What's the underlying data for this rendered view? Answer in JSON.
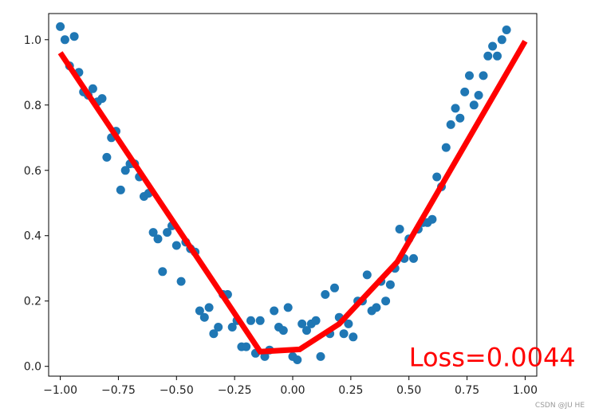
{
  "chart_data": {
    "type": "scatter",
    "xlim": [
      -1.05,
      1.05
    ],
    "ylim": [
      -0.03,
      1.08
    ],
    "grid": false,
    "x_ticks": [
      -1.0,
      -0.75,
      -0.5,
      -0.25,
      0.0,
      0.25,
      0.5,
      0.75,
      1.0
    ],
    "x_tick_labels": [
      "−1.00",
      "−0.75",
      "−0.50",
      "−0.25",
      "0.00",
      "0.25",
      "0.50",
      "0.75",
      "1.00"
    ],
    "y_ticks": [
      0.0,
      0.2,
      0.4,
      0.6,
      0.8,
      1.0
    ],
    "y_tick_labels": [
      "0.0",
      "0.2",
      "0.4",
      "0.6",
      "0.8",
      "1.0"
    ],
    "scatter_color": "#1f77b4",
    "line_color": "#ff0000",
    "annotation": {
      "text": "Loss=0.0044",
      "color": "#ff0000",
      "x": 0.5,
      "y": 0.0
    },
    "points": [
      [
        -1.0,
        1.04
      ],
      [
        -0.98,
        1.0
      ],
      [
        -0.96,
        0.92
      ],
      [
        -0.94,
        1.01
      ],
      [
        -0.92,
        0.9
      ],
      [
        -0.9,
        0.84
      ],
      [
        -0.88,
        0.83
      ],
      [
        -0.86,
        0.85
      ],
      [
        -0.84,
        0.81
      ],
      [
        -0.82,
        0.82
      ],
      [
        -0.8,
        0.64
      ],
      [
        -0.78,
        0.7
      ],
      [
        -0.76,
        0.72
      ],
      [
        -0.74,
        0.54
      ],
      [
        -0.72,
        0.6
      ],
      [
        -0.7,
        0.62
      ],
      [
        -0.68,
        0.62
      ],
      [
        -0.66,
        0.58
      ],
      [
        -0.64,
        0.52
      ],
      [
        -0.62,
        0.53
      ],
      [
        -0.6,
        0.41
      ],
      [
        -0.58,
        0.39
      ],
      [
        -0.56,
        0.29
      ],
      [
        -0.54,
        0.41
      ],
      [
        -0.52,
        0.43
      ],
      [
        -0.5,
        0.37
      ],
      [
        -0.48,
        0.26
      ],
      [
        -0.46,
        0.38
      ],
      [
        -0.44,
        0.36
      ],
      [
        -0.42,
        0.35
      ],
      [
        -0.4,
        0.17
      ],
      [
        -0.38,
        0.15
      ],
      [
        -0.36,
        0.18
      ],
      [
        -0.34,
        0.1
      ],
      [
        -0.32,
        0.12
      ],
      [
        -0.3,
        0.22
      ],
      [
        -0.28,
        0.22
      ],
      [
        -0.26,
        0.12
      ],
      [
        -0.24,
        0.14
      ],
      [
        -0.22,
        0.06
      ],
      [
        -0.2,
        0.06
      ],
      [
        -0.18,
        0.14
      ],
      [
        -0.16,
        0.04
      ],
      [
        -0.14,
        0.14
      ],
      [
        -0.12,
        0.03
      ],
      [
        -0.1,
        0.05
      ],
      [
        -0.08,
        0.17
      ],
      [
        -0.06,
        0.12
      ],
      [
        -0.04,
        0.11
      ],
      [
        -0.02,
        0.18
      ],
      [
        0.0,
        0.03
      ],
      [
        0.02,
        0.02
      ],
      [
        0.04,
        0.13
      ],
      [
        0.06,
        0.11
      ],
      [
        0.08,
        0.13
      ],
      [
        0.1,
        0.14
      ],
      [
        0.12,
        0.03
      ],
      [
        0.14,
        0.22
      ],
      [
        0.16,
        0.1
      ],
      [
        0.18,
        0.24
      ],
      [
        0.2,
        0.15
      ],
      [
        0.22,
        0.1
      ],
      [
        0.24,
        0.13
      ],
      [
        0.26,
        0.09
      ],
      [
        0.28,
        0.2
      ],
      [
        0.3,
        0.2
      ],
      [
        0.32,
        0.28
      ],
      [
        0.34,
        0.17
      ],
      [
        0.36,
        0.18
      ],
      [
        0.38,
        0.26
      ],
      [
        0.4,
        0.2
      ],
      [
        0.42,
        0.25
      ],
      [
        0.44,
        0.3
      ],
      [
        0.46,
        0.42
      ],
      [
        0.48,
        0.33
      ],
      [
        0.5,
        0.39
      ],
      [
        0.52,
        0.33
      ],
      [
        0.54,
        0.42
      ],
      [
        0.56,
        0.44
      ],
      [
        0.58,
        0.44
      ],
      [
        0.6,
        0.45
      ],
      [
        0.62,
        0.58
      ],
      [
        0.64,
        0.55
      ],
      [
        0.66,
        0.67
      ],
      [
        0.68,
        0.74
      ],
      [
        0.7,
        0.79
      ],
      [
        0.72,
        0.76
      ],
      [
        0.74,
        0.84
      ],
      [
        0.76,
        0.89
      ],
      [
        0.78,
        0.8
      ],
      [
        0.8,
        0.83
      ],
      [
        0.82,
        0.89
      ],
      [
        0.84,
        0.95
      ],
      [
        0.86,
        0.98
      ],
      [
        0.88,
        0.95
      ],
      [
        0.9,
        1.0
      ],
      [
        0.92,
        1.03
      ]
    ],
    "fit_line": [
      [
        -1.0,
        0.96
      ],
      [
        -0.14,
        0.045
      ],
      [
        0.03,
        0.052
      ],
      [
        0.2,
        0.13
      ],
      [
        0.45,
        0.32
      ],
      [
        1.0,
        0.995
      ]
    ]
  },
  "watermark": "CSDN @JU HE"
}
